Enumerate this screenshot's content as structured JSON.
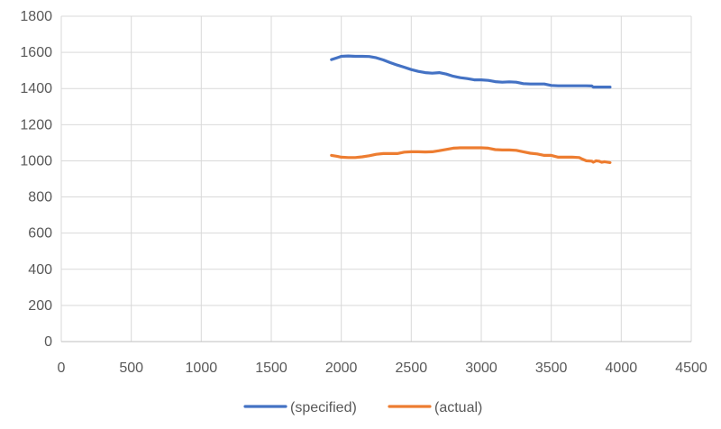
{
  "chart_data": {
    "type": "line",
    "title": "",
    "xlabel": "",
    "ylabel": "",
    "xlim": [
      0,
      4500
    ],
    "ylim": [
      0,
      1800
    ],
    "x_ticks": [
      0,
      500,
      1000,
      1500,
      2000,
      2500,
      3000,
      3500,
      4000,
      4500
    ],
    "y_ticks": [
      0,
      200,
      400,
      600,
      800,
      1000,
      1200,
      1400,
      1600,
      1800
    ],
    "x_tick_labels": [
      "0",
      "500",
      "1000",
      "1500",
      "2000",
      "2500",
      "3000",
      "3500",
      "4000",
      "4500"
    ],
    "y_tick_labels": [
      "0",
      "200",
      "400",
      "600",
      "800",
      "1000",
      "1200",
      "1400",
      "1600",
      "1800"
    ],
    "grid": true,
    "legend_position": "bottom",
    "series": [
      {
        "name": "(specified)",
        "color": "#4472C4",
        "points": [
          [
            1930,
            1560
          ],
          [
            1970,
            1570
          ],
          [
            2000,
            1578
          ],
          [
            2050,
            1580
          ],
          [
            2100,
            1578
          ],
          [
            2150,
            1578
          ],
          [
            2200,
            1577
          ],
          [
            2250,
            1570
          ],
          [
            2300,
            1558
          ],
          [
            2350,
            1543
          ],
          [
            2400,
            1530
          ],
          [
            2450,
            1518
          ],
          [
            2500,
            1505
          ],
          [
            2550,
            1495
          ],
          [
            2600,
            1488
          ],
          [
            2650,
            1485
          ],
          [
            2700,
            1488
          ],
          [
            2750,
            1480
          ],
          [
            2800,
            1468
          ],
          [
            2850,
            1460
          ],
          [
            2900,
            1455
          ],
          [
            2950,
            1448
          ],
          [
            3000,
            1448
          ],
          [
            3050,
            1445
          ],
          [
            3100,
            1438
          ],
          [
            3150,
            1435
          ],
          [
            3200,
            1437
          ],
          [
            3250,
            1435
          ],
          [
            3300,
            1427
          ],
          [
            3350,
            1425
          ],
          [
            3400,
            1425
          ],
          [
            3450,
            1425
          ],
          [
            3500,
            1417
          ],
          [
            3550,
            1415
          ],
          [
            3600,
            1415
          ],
          [
            3650,
            1415
          ],
          [
            3700,
            1415
          ],
          [
            3750,
            1415
          ],
          [
            3790,
            1414
          ],
          [
            3800,
            1408
          ],
          [
            3850,
            1408
          ],
          [
            3920,
            1408
          ]
        ]
      },
      {
        "name": "(actual)",
        "color": "#ED7D31",
        "points": [
          [
            1930,
            1030
          ],
          [
            1970,
            1025
          ],
          [
            2000,
            1020
          ],
          [
            2050,
            1018
          ],
          [
            2100,
            1018
          ],
          [
            2150,
            1022
          ],
          [
            2200,
            1028
          ],
          [
            2250,
            1036
          ],
          [
            2300,
            1040
          ],
          [
            2350,
            1040
          ],
          [
            2400,
            1040
          ],
          [
            2450,
            1048
          ],
          [
            2500,
            1050
          ],
          [
            2550,
            1050
          ],
          [
            2600,
            1049
          ],
          [
            2650,
            1050
          ],
          [
            2700,
            1056
          ],
          [
            2750,
            1063
          ],
          [
            2800,
            1070
          ],
          [
            2850,
            1072
          ],
          [
            2900,
            1072
          ],
          [
            2950,
            1072
          ],
          [
            3000,
            1072
          ],
          [
            3050,
            1070
          ],
          [
            3100,
            1062
          ],
          [
            3150,
            1060
          ],
          [
            3200,
            1060
          ],
          [
            3250,
            1058
          ],
          [
            3300,
            1050
          ],
          [
            3350,
            1042
          ],
          [
            3400,
            1038
          ],
          [
            3450,
            1030
          ],
          [
            3500,
            1030
          ],
          [
            3550,
            1020
          ],
          [
            3600,
            1020
          ],
          [
            3650,
            1020
          ],
          [
            3700,
            1018
          ],
          [
            3720,
            1010
          ],
          [
            3750,
            1000
          ],
          [
            3790,
            998
          ],
          [
            3800,
            992
          ],
          [
            3820,
            1000
          ],
          [
            3840,
            998
          ],
          [
            3860,
            992
          ],
          [
            3880,
            995
          ],
          [
            3920,
            990
          ]
        ]
      }
    ]
  }
}
